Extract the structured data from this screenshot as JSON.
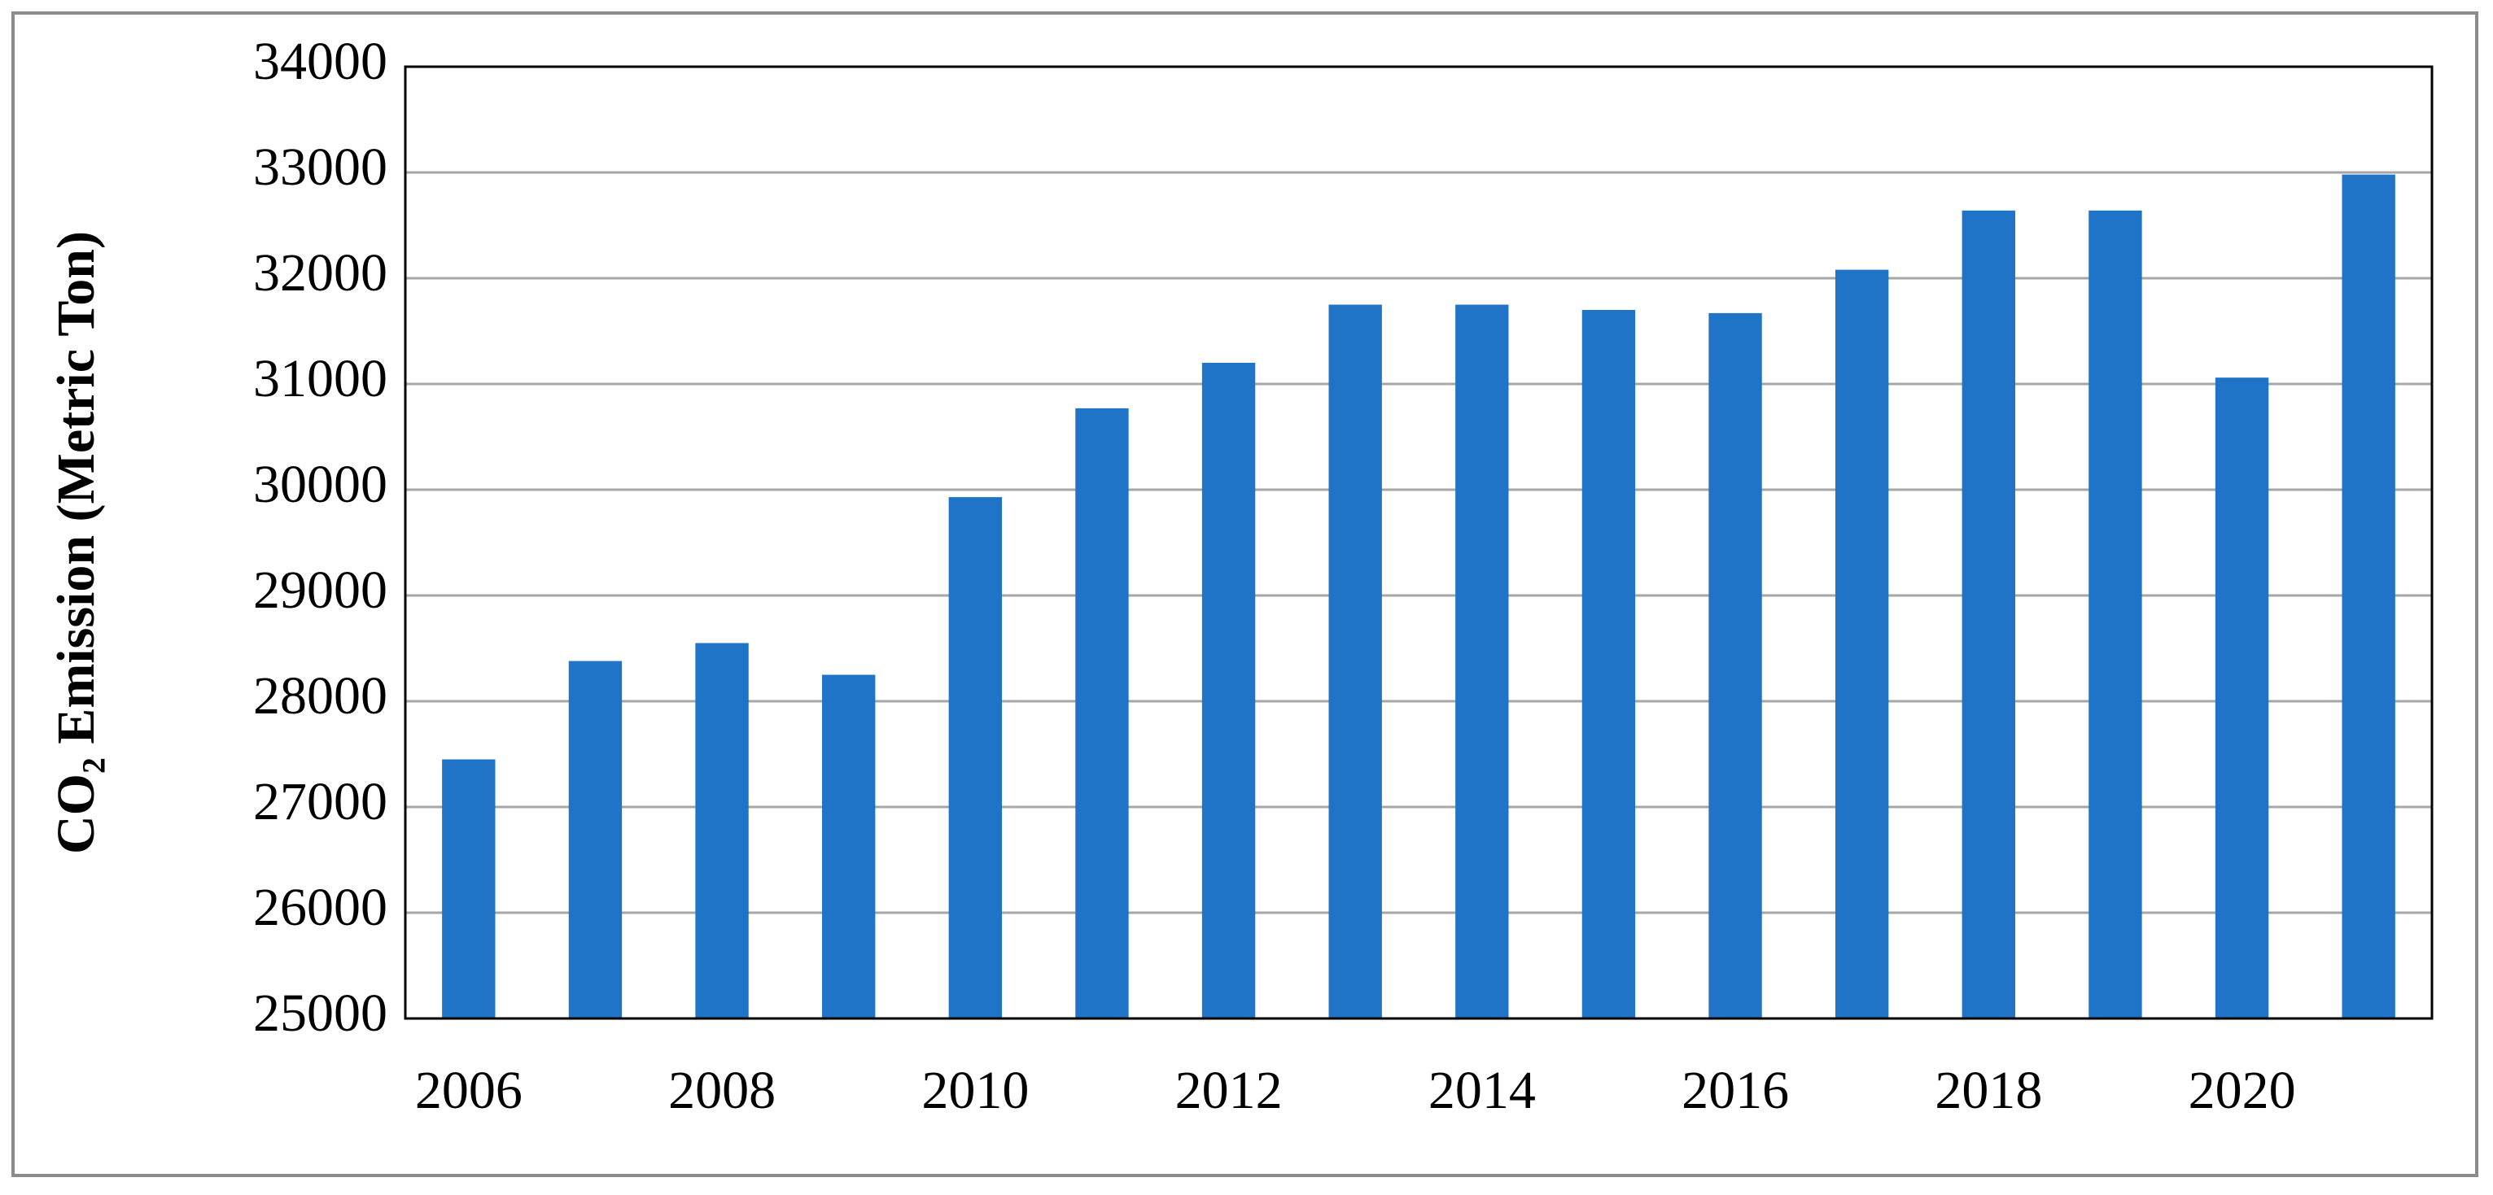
{
  "chart_data": {
    "type": "bar",
    "y_label": "CO₂ Emission (Metric Ton)",
    "categories": [
      "2006",
      null,
      "2008",
      null,
      "2010",
      null,
      "2012",
      null,
      "2014",
      null,
      "2016",
      null,
      "2018",
      null,
      "2020",
      null
    ],
    "values": [
      27450,
      28380,
      28550,
      28250,
      29930,
      30770,
      31200,
      31750,
      31750,
      31700,
      31670,
      32080,
      32640,
      32640,
      31060,
      32980
    ],
    "color": "#1f74c8",
    "ylim": [
      25000,
      34000
    ],
    "yticks": [
      25000,
      26000,
      27000,
      28000,
      29000,
      30000,
      31000,
      32000,
      33000,
      34000
    ],
    "grid": true
  }
}
